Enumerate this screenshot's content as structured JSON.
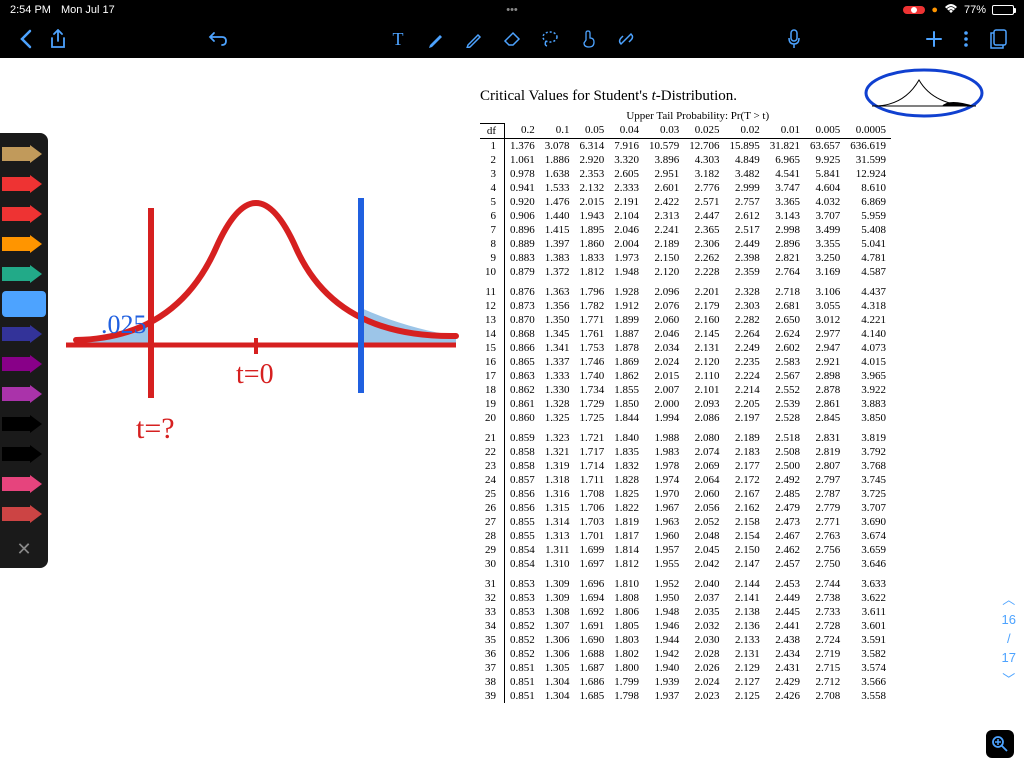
{
  "status": {
    "time": "2:54 PM",
    "date": "Mon Jul 17",
    "ellipsis": "•••",
    "battery_pct": "77%",
    "battery_fill_pct": 77
  },
  "pens": [
    {
      "color": "#c19a5b"
    },
    {
      "color": "#e33"
    },
    {
      "color": "#e33"
    },
    {
      "color": "#ff9500"
    },
    {
      "color": "#2a8"
    },
    {
      "color": "#4da3ff",
      "selected": true
    },
    {
      "color": "#339"
    },
    {
      "color": "#808"
    },
    {
      "color": "#a3a"
    },
    {
      "color": "#000"
    },
    {
      "color": "#000"
    },
    {
      "color": "#e6447d"
    },
    {
      "color": "#c44"
    }
  ],
  "sketch": {
    "curve_color": "#d62020",
    "axis_color": "#d62020",
    "vline_left_color": "#d62020",
    "vline_right_color": "#2060e0",
    "shade_color": "#9cc5e8",
    "label_color": "#d62020",
    "shade_label": ".025",
    "tzero": "t=0",
    "tquestion": "t=?"
  },
  "table": {
    "title_a": "Critical Values for Student's ",
    "title_b": "t",
    "title_c": "-Distribution.",
    "header_span": "Upper Tail Probability: Pr(T > t)",
    "df_label": "df",
    "probs": [
      "0.2",
      "0.1",
      "0.05",
      "0.04",
      "0.03",
      "0.025",
      "0.02",
      "0.01",
      "0.005",
      "0.0005"
    ],
    "rows": [
      [
        1,
        "1.376",
        "3.078",
        "6.314",
        "7.916",
        "10.579",
        "12.706",
        "15.895",
        "31.821",
        "63.657",
        "636.619"
      ],
      [
        2,
        "1.061",
        "1.886",
        "2.920",
        "3.320",
        "3.896",
        "4.303",
        "4.849",
        "6.965",
        "9.925",
        "31.599"
      ],
      [
        3,
        "0.978",
        "1.638",
        "2.353",
        "2.605",
        "2.951",
        "3.182",
        "3.482",
        "4.541",
        "5.841",
        "12.924"
      ],
      [
        4,
        "0.941",
        "1.533",
        "2.132",
        "2.333",
        "2.601",
        "2.776",
        "2.999",
        "3.747",
        "4.604",
        "8.610"
      ],
      [
        5,
        "0.920",
        "1.476",
        "2.015",
        "2.191",
        "2.422",
        "2.571",
        "2.757",
        "3.365",
        "4.032",
        "6.869"
      ],
      [
        6,
        "0.906",
        "1.440",
        "1.943",
        "2.104",
        "2.313",
        "2.447",
        "2.612",
        "3.143",
        "3.707",
        "5.959"
      ],
      [
        7,
        "0.896",
        "1.415",
        "1.895",
        "2.046",
        "2.241",
        "2.365",
        "2.517",
        "2.998",
        "3.499",
        "5.408"
      ],
      [
        8,
        "0.889",
        "1.397",
        "1.860",
        "2.004",
        "2.189",
        "2.306",
        "2.449",
        "2.896",
        "3.355",
        "5.041"
      ],
      [
        9,
        "0.883",
        "1.383",
        "1.833",
        "1.973",
        "2.150",
        "2.262",
        "2.398",
        "2.821",
        "3.250",
        "4.781"
      ],
      [
        10,
        "0.879",
        "1.372",
        "1.812",
        "1.948",
        "2.120",
        "2.228",
        "2.359",
        "2.764",
        "3.169",
        "4.587"
      ],
      [
        11,
        "0.876",
        "1.363",
        "1.796",
        "1.928",
        "2.096",
        "2.201",
        "2.328",
        "2.718",
        "3.106",
        "4.437"
      ],
      [
        12,
        "0.873",
        "1.356",
        "1.782",
        "1.912",
        "2.076",
        "2.179",
        "2.303",
        "2.681",
        "3.055",
        "4.318"
      ],
      [
        13,
        "0.870",
        "1.350",
        "1.771",
        "1.899",
        "2.060",
        "2.160",
        "2.282",
        "2.650",
        "3.012",
        "4.221"
      ],
      [
        14,
        "0.868",
        "1.345",
        "1.761",
        "1.887",
        "2.046",
        "2.145",
        "2.264",
        "2.624",
        "2.977",
        "4.140"
      ],
      [
        15,
        "0.866",
        "1.341",
        "1.753",
        "1.878",
        "2.034",
        "2.131",
        "2.249",
        "2.602",
        "2.947",
        "4.073"
      ],
      [
        16,
        "0.865",
        "1.337",
        "1.746",
        "1.869",
        "2.024",
        "2.120",
        "2.235",
        "2.583",
        "2.921",
        "4.015"
      ],
      [
        17,
        "0.863",
        "1.333",
        "1.740",
        "1.862",
        "2.015",
        "2.110",
        "2.224",
        "2.567",
        "2.898",
        "3.965"
      ],
      [
        18,
        "0.862",
        "1.330",
        "1.734",
        "1.855",
        "2.007",
        "2.101",
        "2.214",
        "2.552",
        "2.878",
        "3.922"
      ],
      [
        19,
        "0.861",
        "1.328",
        "1.729",
        "1.850",
        "2.000",
        "2.093",
        "2.205",
        "2.539",
        "2.861",
        "3.883"
      ],
      [
        20,
        "0.860",
        "1.325",
        "1.725",
        "1.844",
        "1.994",
        "2.086",
        "2.197",
        "2.528",
        "2.845",
        "3.850"
      ],
      [
        21,
        "0.859",
        "1.323",
        "1.721",
        "1.840",
        "1.988",
        "2.080",
        "2.189",
        "2.518",
        "2.831",
        "3.819"
      ],
      [
        22,
        "0.858",
        "1.321",
        "1.717",
        "1.835",
        "1.983",
        "2.074",
        "2.183",
        "2.508",
        "2.819",
        "3.792"
      ],
      [
        23,
        "0.858",
        "1.319",
        "1.714",
        "1.832",
        "1.978",
        "2.069",
        "2.177",
        "2.500",
        "2.807",
        "3.768"
      ],
      [
        24,
        "0.857",
        "1.318",
        "1.711",
        "1.828",
        "1.974",
        "2.064",
        "2.172",
        "2.492",
        "2.797",
        "3.745"
      ],
      [
        25,
        "0.856",
        "1.316",
        "1.708",
        "1.825",
        "1.970",
        "2.060",
        "2.167",
        "2.485",
        "2.787",
        "3.725"
      ],
      [
        26,
        "0.856",
        "1.315",
        "1.706",
        "1.822",
        "1.967",
        "2.056",
        "2.162",
        "2.479",
        "2.779",
        "3.707"
      ],
      [
        27,
        "0.855",
        "1.314",
        "1.703",
        "1.819",
        "1.963",
        "2.052",
        "2.158",
        "2.473",
        "2.771",
        "3.690"
      ],
      [
        28,
        "0.855",
        "1.313",
        "1.701",
        "1.817",
        "1.960",
        "2.048",
        "2.154",
        "2.467",
        "2.763",
        "3.674"
      ],
      [
        29,
        "0.854",
        "1.311",
        "1.699",
        "1.814",
        "1.957",
        "2.045",
        "2.150",
        "2.462",
        "2.756",
        "3.659"
      ],
      [
        30,
        "0.854",
        "1.310",
        "1.697",
        "1.812",
        "1.955",
        "2.042",
        "2.147",
        "2.457",
        "2.750",
        "3.646"
      ],
      [
        31,
        "0.853",
        "1.309",
        "1.696",
        "1.810",
        "1.952",
        "2.040",
        "2.144",
        "2.453",
        "2.744",
        "3.633"
      ],
      [
        32,
        "0.853",
        "1.309",
        "1.694",
        "1.808",
        "1.950",
        "2.037",
        "2.141",
        "2.449",
        "2.738",
        "3.622"
      ],
      [
        33,
        "0.853",
        "1.308",
        "1.692",
        "1.806",
        "1.948",
        "2.035",
        "2.138",
        "2.445",
        "2.733",
        "3.611"
      ],
      [
        34,
        "0.852",
        "1.307",
        "1.691",
        "1.805",
        "1.946",
        "2.032",
        "2.136",
        "2.441",
        "2.728",
        "3.601"
      ],
      [
        35,
        "0.852",
        "1.306",
        "1.690",
        "1.803",
        "1.944",
        "2.030",
        "2.133",
        "2.438",
        "2.724",
        "3.591"
      ],
      [
        36,
        "0.852",
        "1.306",
        "1.688",
        "1.802",
        "1.942",
        "2.028",
        "2.131",
        "2.434",
        "2.719",
        "3.582"
      ],
      [
        37,
        "0.851",
        "1.305",
        "1.687",
        "1.800",
        "1.940",
        "2.026",
        "2.129",
        "2.431",
        "2.715",
        "3.574"
      ],
      [
        38,
        "0.851",
        "1.304",
        "1.686",
        "1.799",
        "1.939",
        "2.024",
        "2.127",
        "2.429",
        "2.712",
        "3.566"
      ],
      [
        39,
        "0.851",
        "1.304",
        "1.685",
        "1.798",
        "1.937",
        "2.023",
        "2.125",
        "2.426",
        "2.708",
        "3.558"
      ]
    ],
    "group_breaks": [
      10,
      20,
      30
    ]
  },
  "thumbnail": {
    "circle_color": "#1040d0"
  },
  "page_nav": {
    "current": "16",
    "sep": "/",
    "total": "17"
  }
}
